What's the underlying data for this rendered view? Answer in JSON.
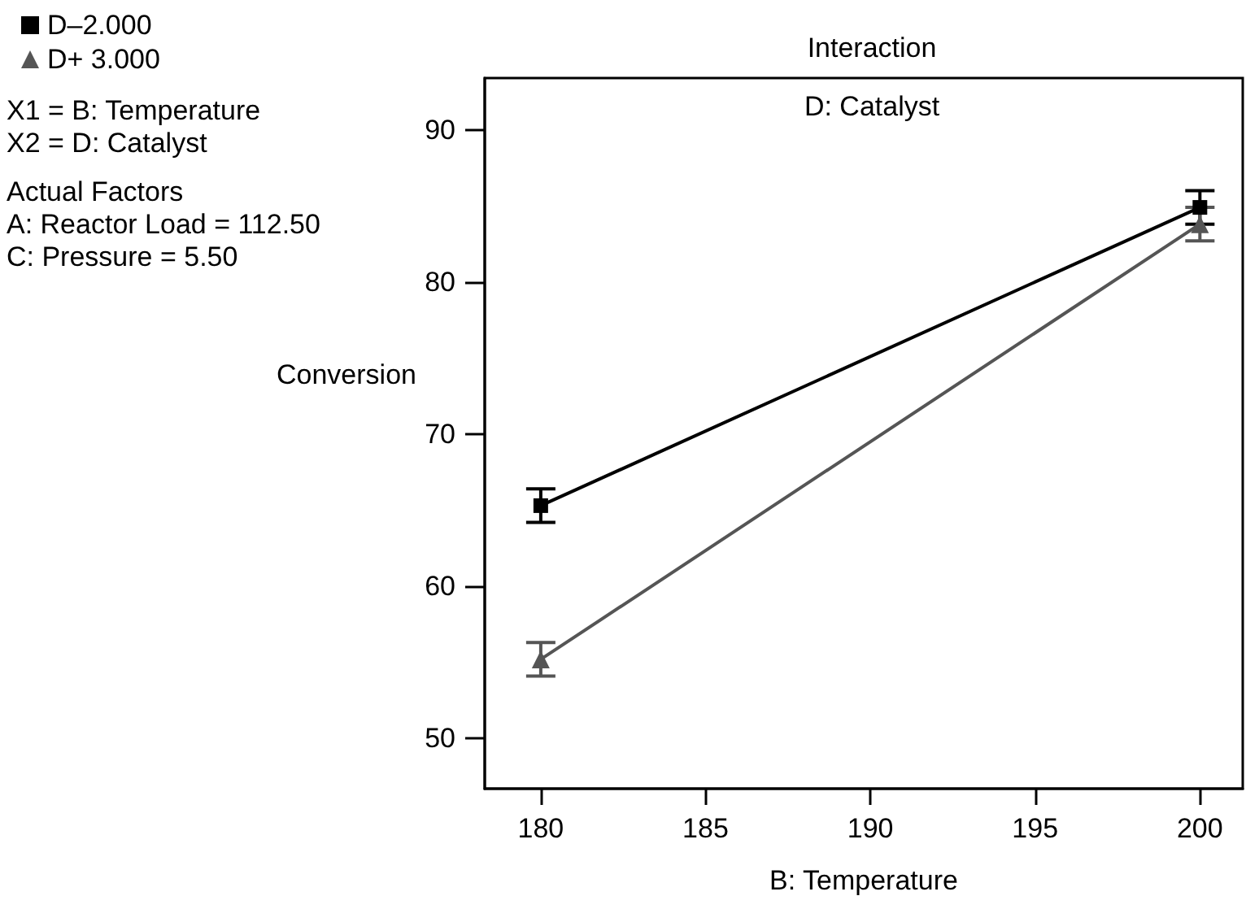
{
  "chart_data": {
    "type": "line",
    "title": "Interaction",
    "subtitle": "D: Catalyst",
    "xlabel": "B: Temperature",
    "ylabel": "Conversion",
    "x": [
      180,
      200
    ],
    "series": [
      {
        "name": "D–2.000",
        "color": "#000000",
        "marker": "square",
        "values": [
          65.3,
          84.9
        ],
        "errors": [
          1.1,
          1.1
        ]
      },
      {
        "name": "D+ 3.000",
        "color": "#555555",
        "marker": "triangle",
        "values": [
          55.2,
          83.8
        ],
        "errors": [
          1.1,
          1.1
        ]
      }
    ],
    "xlim": [
      178.3,
      201.3
    ],
    "xticks": [
      180,
      185,
      190,
      195,
      200
    ],
    "ylim": [
      46.7,
      93.4
    ],
    "yticks": [
      50,
      60,
      70,
      80,
      90
    ],
    "grid": false,
    "legend": "top left",
    "line_style": "solid",
    "annotations": [
      "X1 = B: Temperature",
      "X2 = D: Catalyst",
      "Actual Factors\nA: Reactor Load = 112.50\nC: Pressure = 5.50"
    ]
  }
}
